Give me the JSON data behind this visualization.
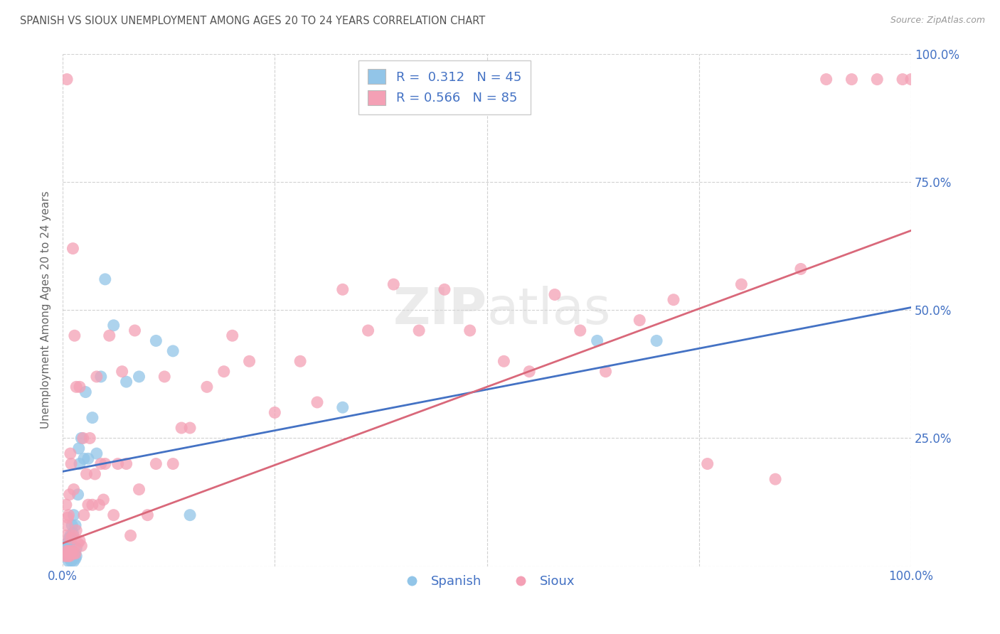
{
  "title": "SPANISH VS SIOUX UNEMPLOYMENT AMONG AGES 20 TO 24 YEARS CORRELATION CHART",
  "source": "Source: ZipAtlas.com",
  "ylabel": "Unemployment Among Ages 20 to 24 years",
  "xlim": [
    0,
    1
  ],
  "ylim": [
    0,
    1
  ],
  "xticks": [
    0.0,
    0.25,
    0.5,
    0.75,
    1.0
  ],
  "yticks": [
    0.0,
    0.25,
    0.5,
    0.75,
    1.0
  ],
  "legend_r_spanish": "0.312",
  "legend_n_spanish": "45",
  "legend_r_sioux": "0.566",
  "legend_n_sioux": "85",
  "spanish_color": "#92C5E8",
  "sioux_color": "#F4A0B5",
  "spanish_line_color": "#4472C4",
  "sioux_line_color": "#D9687A",
  "background_color": "#ffffff",
  "grid_color": "#cccccc",
  "title_color": "#555555",
  "axis_label_color": "#666666",
  "tick_label_color": "#4472C4",
  "spanish_line_start": 0.185,
  "spanish_line_end": 0.505,
  "sioux_line_start": 0.045,
  "sioux_line_end": 0.655,
  "spanish_x": [
    0.005,
    0.005,
    0.006,
    0.006,
    0.007,
    0.007,
    0.007,
    0.008,
    0.008,
    0.009,
    0.009,
    0.01,
    0.01,
    0.01,
    0.011,
    0.011,
    0.012,
    0.012,
    0.013,
    0.013,
    0.014,
    0.015,
    0.015,
    0.016,
    0.016,
    0.018,
    0.019,
    0.02,
    0.022,
    0.025,
    0.027,
    0.03,
    0.035,
    0.04,
    0.045,
    0.05,
    0.06,
    0.075,
    0.09,
    0.11,
    0.13,
    0.15,
    0.33,
    0.63,
    0.7
  ],
  "spanish_y": [
    0.03,
    0.045,
    0.02,
    0.035,
    0.01,
    0.025,
    0.04,
    0.015,
    0.055,
    0.02,
    0.06,
    0.01,
    0.03,
    0.05,
    0.015,
    0.08,
    0.02,
    0.065,
    0.01,
    0.1,
    0.025,
    0.015,
    0.08,
    0.02,
    0.035,
    0.14,
    0.23,
    0.2,
    0.25,
    0.21,
    0.34,
    0.21,
    0.29,
    0.22,
    0.37,
    0.56,
    0.47,
    0.36,
    0.37,
    0.44,
    0.42,
    0.1,
    0.31,
    0.44,
    0.44
  ],
  "sioux_x": [
    0.003,
    0.004,
    0.004,
    0.005,
    0.005,
    0.005,
    0.006,
    0.006,
    0.007,
    0.007,
    0.008,
    0.008,
    0.009,
    0.009,
    0.01,
    0.01,
    0.01,
    0.011,
    0.012,
    0.012,
    0.013,
    0.013,
    0.014,
    0.015,
    0.016,
    0.016,
    0.018,
    0.02,
    0.02,
    0.022,
    0.024,
    0.025,
    0.028,
    0.03,
    0.032,
    0.035,
    0.038,
    0.04,
    0.043,
    0.045,
    0.048,
    0.05,
    0.055,
    0.06,
    0.065,
    0.07,
    0.075,
    0.08,
    0.085,
    0.09,
    0.1,
    0.11,
    0.12,
    0.13,
    0.14,
    0.15,
    0.17,
    0.19,
    0.2,
    0.22,
    0.25,
    0.28,
    0.3,
    0.33,
    0.36,
    0.39,
    0.42,
    0.45,
    0.48,
    0.52,
    0.55,
    0.58,
    0.61,
    0.64,
    0.68,
    0.72,
    0.76,
    0.8,
    0.84,
    0.87,
    0.9,
    0.93,
    0.96,
    0.99,
    1.0
  ],
  "sioux_y": [
    0.02,
    0.06,
    0.12,
    0.03,
    0.08,
    0.95,
    0.02,
    0.095,
    0.03,
    0.1,
    0.02,
    0.14,
    0.03,
    0.22,
    0.025,
    0.055,
    0.2,
    0.03,
    0.06,
    0.62,
    0.025,
    0.15,
    0.45,
    0.025,
    0.07,
    0.35,
    0.045,
    0.05,
    0.35,
    0.04,
    0.25,
    0.1,
    0.18,
    0.12,
    0.25,
    0.12,
    0.18,
    0.37,
    0.12,
    0.2,
    0.13,
    0.2,
    0.45,
    0.1,
    0.2,
    0.38,
    0.2,
    0.06,
    0.46,
    0.15,
    0.1,
    0.2,
    0.37,
    0.2,
    0.27,
    0.27,
    0.35,
    0.38,
    0.45,
    0.4,
    0.3,
    0.4,
    0.32,
    0.54,
    0.46,
    0.55,
    0.46,
    0.54,
    0.46,
    0.4,
    0.38,
    0.53,
    0.46,
    0.38,
    0.48,
    0.52,
    0.2,
    0.55,
    0.17,
    0.58,
    0.95,
    0.95,
    0.95,
    0.95,
    0.95
  ]
}
